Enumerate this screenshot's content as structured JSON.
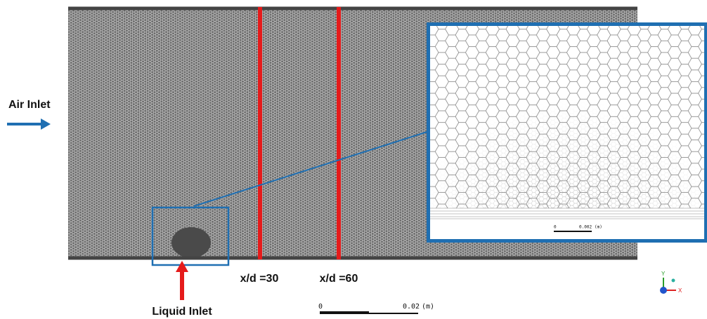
{
  "annotations": {
    "air_inlet": "Air Inlet",
    "liquid_inlet": "Liquid Inlet",
    "stations": [
      "x/d =30",
      "x/d =60"
    ]
  },
  "scale_bar": {
    "start": "0",
    "end": "0.02",
    "unit": "(m)"
  },
  "inset_scale_bar": {
    "start": "0",
    "end": "0.002",
    "unit": "(m)"
  },
  "axes": {
    "y": "Y",
    "x": "X"
  }
}
